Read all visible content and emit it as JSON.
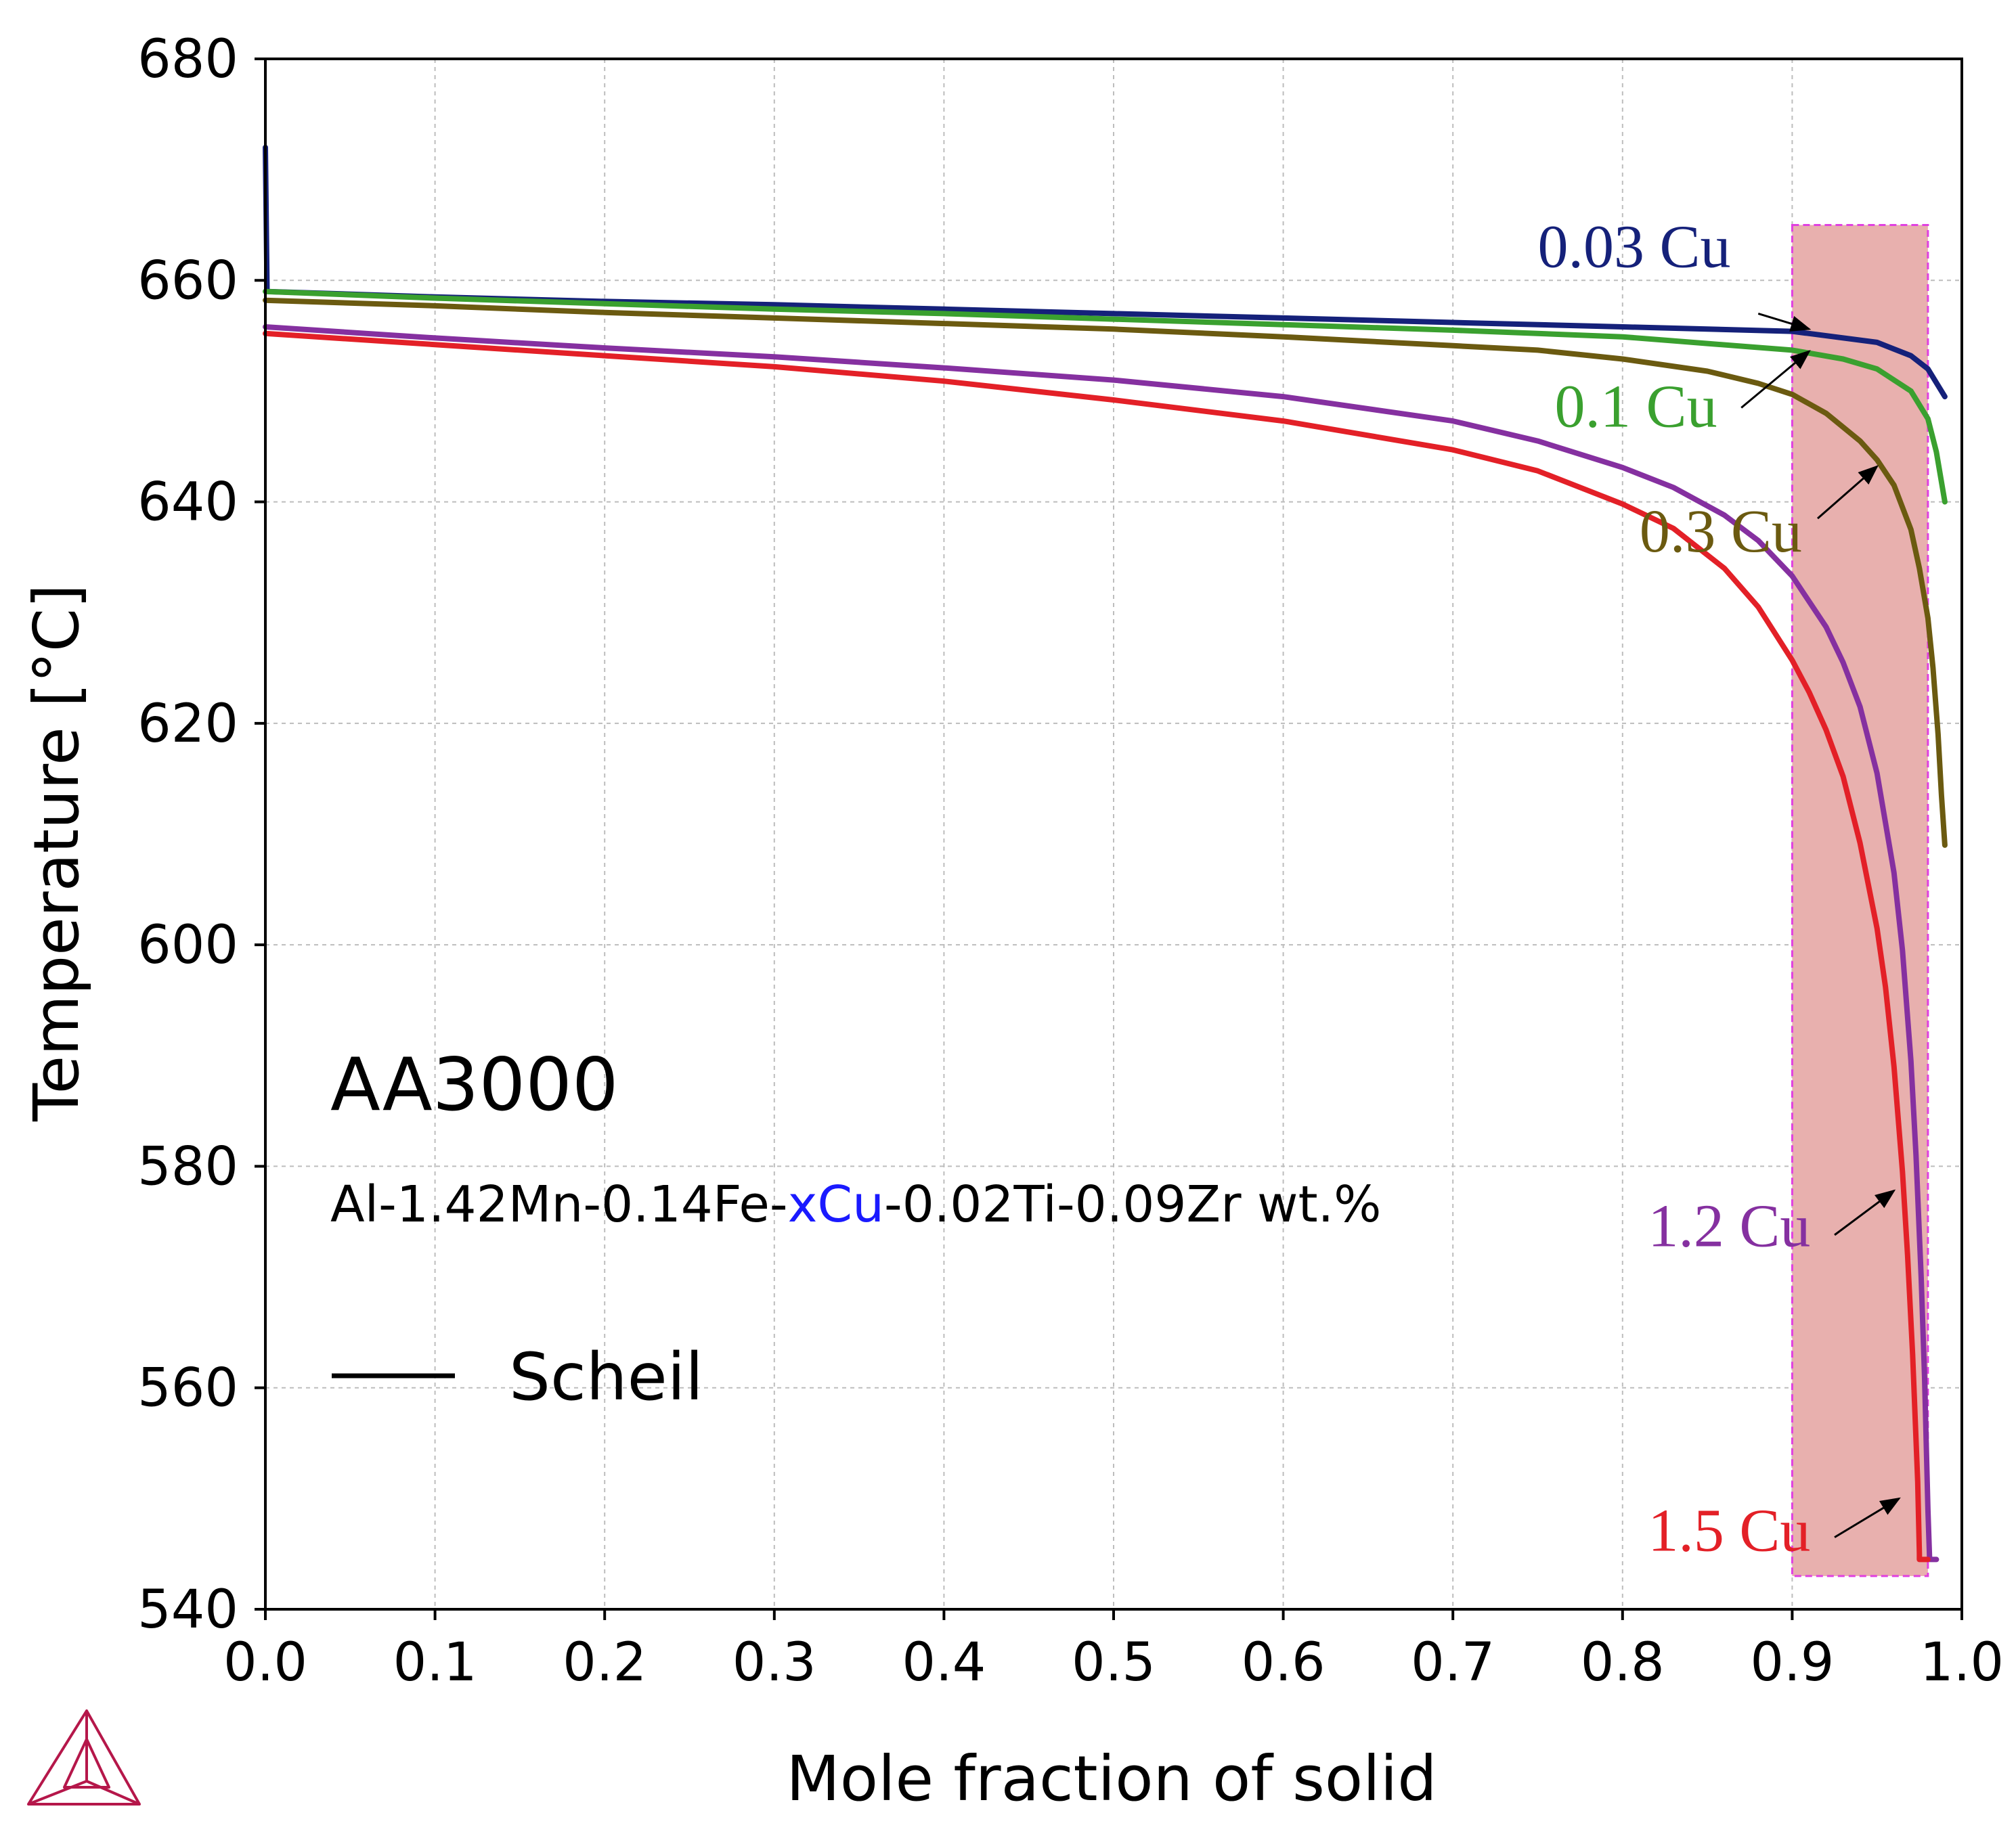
{
  "colors": {
    "c003": "#15217a",
    "c01": "#3aa02f",
    "c03": "#6b5a10",
    "c12": "#8530a0",
    "c15": "#e32027",
    "highlight_fill": "#e8b0ae",
    "highlight_border": "#e040e0",
    "grid": "#bdbdbd",
    "logo": "#b5174a",
    "xcu_highlight": "#1a1aff"
  },
  "texts": {
    "alloy": "AA3000",
    "comp_prefix": "Al-1.42Mn-0.14Fe-",
    "comp_highlight": "xCu",
    "comp_suffix": "-0.02Ti-0.09Zr wt.%",
    "legend": "Scheil"
  },
  "logo_icon": "thermo-calc-triangle-logo-icon",
  "chart_data": {
    "type": "line",
    "xlabel": "Mole fraction of solid",
    "ylabel": "Temperature [°C]",
    "xlim": [
      0.0,
      1.0
    ],
    "ylim": [
      540,
      680
    ],
    "x_ticks": [
      "0.0",
      "0.1",
      "0.2",
      "0.3",
      "0.4",
      "0.5",
      "0.6",
      "0.7",
      "0.8",
      "0.9",
      "1.0"
    ],
    "y_ticks": [
      "540",
      "560",
      "580",
      "600",
      "620",
      "640",
      "660",
      "680"
    ],
    "grid": true,
    "highlight_region": {
      "x": [
        0.9,
        0.98
      ],
      "y": [
        543,
        665
      ]
    },
    "series": [
      {
        "name": "0.03 Cu",
        "color_key": "c003",
        "points": [
          [
            0.0,
            672
          ],
          [
            0.001,
            659
          ],
          [
            0.1,
            658.5
          ],
          [
            0.2,
            658.1
          ],
          [
            0.3,
            657.8
          ],
          [
            0.4,
            657.4
          ],
          [
            0.5,
            657.0
          ],
          [
            0.6,
            656.6
          ],
          [
            0.7,
            656.2
          ],
          [
            0.8,
            655.8
          ],
          [
            0.9,
            655.4
          ],
          [
            0.95,
            654.4
          ],
          [
            0.97,
            653.2
          ],
          [
            0.98,
            652.0
          ],
          [
            0.99,
            649.5
          ]
        ]
      },
      {
        "name": "0.1 Cu",
        "color_key": "c01",
        "points": [
          [
            0.0,
            659
          ],
          [
            0.1,
            658.4
          ],
          [
            0.2,
            657.9
          ],
          [
            0.3,
            657.4
          ],
          [
            0.4,
            657.0
          ],
          [
            0.5,
            656.5
          ],
          [
            0.6,
            656.0
          ],
          [
            0.7,
            655.5
          ],
          [
            0.8,
            654.9
          ],
          [
            0.85,
            654.3
          ],
          [
            0.9,
            653.7
          ],
          [
            0.93,
            652.9
          ],
          [
            0.95,
            652.0
          ],
          [
            0.97,
            650.0
          ],
          [
            0.98,
            647.5
          ],
          [
            0.985,
            644.5
          ],
          [
            0.99,
            640
          ]
        ]
      },
      {
        "name": "0.3 Cu",
        "color_key": "c03",
        "points": [
          [
            0.0,
            658.2
          ],
          [
            0.1,
            657.7
          ],
          [
            0.2,
            657.1
          ],
          [
            0.3,
            656.6
          ],
          [
            0.4,
            656.1
          ],
          [
            0.5,
            655.6
          ],
          [
            0.6,
            654.9
          ],
          [
            0.7,
            654.1
          ],
          [
            0.75,
            653.7
          ],
          [
            0.8,
            652.9
          ],
          [
            0.85,
            651.8
          ],
          [
            0.88,
            650.7
          ],
          [
            0.9,
            649.7
          ],
          [
            0.92,
            648.0
          ],
          [
            0.94,
            645.5
          ],
          [
            0.95,
            643.8
          ],
          [
            0.96,
            641.5
          ],
          [
            0.97,
            637.5
          ],
          [
            0.975,
            634.0
          ],
          [
            0.98,
            629.5
          ],
          [
            0.983,
            625.0
          ],
          [
            0.986,
            619.0
          ],
          [
            0.988,
            613.5
          ],
          [
            0.99,
            609
          ]
        ]
      },
      {
        "name": "1.2 Cu",
        "color_key": "c12",
        "points": [
          [
            0.0,
            655.8
          ],
          [
            0.1,
            654.8
          ],
          [
            0.2,
            653.9
          ],
          [
            0.3,
            653.1
          ],
          [
            0.4,
            652.1
          ],
          [
            0.5,
            651.0
          ],
          [
            0.6,
            649.5
          ],
          [
            0.7,
            647.3
          ],
          [
            0.75,
            645.5
          ],
          [
            0.8,
            643.1
          ],
          [
            0.83,
            641.3
          ],
          [
            0.86,
            638.8
          ],
          [
            0.88,
            636.5
          ],
          [
            0.9,
            633.3
          ],
          [
            0.92,
            628.7
          ],
          [
            0.93,
            625.5
          ],
          [
            0.94,
            621.5
          ],
          [
            0.95,
            615.5
          ],
          [
            0.96,
            606.5
          ],
          [
            0.965,
            599.5
          ],
          [
            0.97,
            589.5
          ],
          [
            0.973,
            581
          ],
          [
            0.976,
            570
          ],
          [
            0.978,
            561
          ],
          [
            0.98,
            549
          ],
          [
            0.981,
            544.5
          ],
          [
            0.985,
            544.5
          ]
        ]
      },
      {
        "name": "1.5 Cu",
        "color_key": "c15",
        "points": [
          [
            0.0,
            655.2
          ],
          [
            0.1,
            654.2
          ],
          [
            0.2,
            653.2
          ],
          [
            0.3,
            652.2
          ],
          [
            0.4,
            650.9
          ],
          [
            0.5,
            649.2
          ],
          [
            0.6,
            647.3
          ],
          [
            0.7,
            644.7
          ],
          [
            0.75,
            642.8
          ],
          [
            0.8,
            639.8
          ],
          [
            0.83,
            637.6
          ],
          [
            0.86,
            634.0
          ],
          [
            0.88,
            630.5
          ],
          [
            0.9,
            625.7
          ],
          [
            0.91,
            622.8
          ],
          [
            0.92,
            619.4
          ],
          [
            0.93,
            615.2
          ],
          [
            0.94,
            609.2
          ],
          [
            0.95,
            601.5
          ],
          [
            0.955,
            596.2
          ],
          [
            0.96,
            589.0
          ],
          [
            0.965,
            579.5
          ],
          [
            0.968,
            572.0
          ],
          [
            0.971,
            563.0
          ],
          [
            0.974,
            551.5
          ],
          [
            0.975,
            545.0
          ],
          [
            0.975,
            544.5
          ],
          [
            0.98,
            544.5
          ]
        ]
      }
    ],
    "annotations": [
      {
        "text": "0.03 Cu",
        "color_key": "c003",
        "tx": 0.75,
        "ty": 661.2,
        "ax0": 0.88,
        "ay0": 657.0,
        "ax1": 0.91,
        "ay1": 655.6
      },
      {
        "text": "0.1 Cu",
        "color_key": "c01",
        "tx": 0.76,
        "ty": 646.8,
        "ax0": 0.87,
        "ay0": 648.5,
        "ax1": 0.91,
        "ay1": 653.6
      },
      {
        "text": "0.3 Cu",
        "color_key": "c03",
        "tx": 0.81,
        "ty": 635.5,
        "ax0": 0.915,
        "ay0": 638.5,
        "ax1": 0.95,
        "ay1": 643.2
      },
      {
        "text": "1.2 Cu",
        "color_key": "c12",
        "tx": 0.815,
        "ty": 572.8,
        "ax0": 0.925,
        "ay0": 573.8,
        "ax1": 0.96,
        "ay1": 577.8
      },
      {
        "text": "1.5 Cu",
        "color_key": "c15",
        "tx": 0.815,
        "ty": 545.3,
        "ax0": 0.925,
        "ay0": 546.5,
        "ax1": 0.963,
        "ay1": 550.0
      }
    ]
  }
}
